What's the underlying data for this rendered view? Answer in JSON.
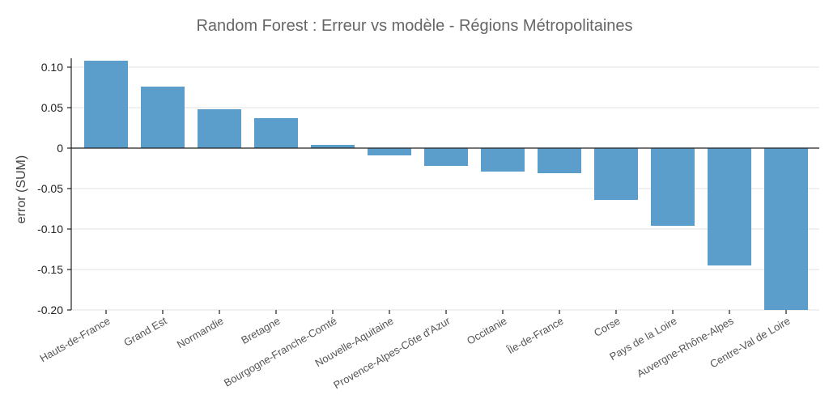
{
  "chart_data": {
    "type": "bar",
    "title": "Random Forest :  Erreur vs modèle - Régions Métropolitaines",
    "xlabel": "",
    "ylabel": "error (SUM)",
    "ylim": [
      -0.2,
      0.11
    ],
    "yticks": [
      0.1,
      0.05,
      0,
      -0.05,
      -0.1,
      -0.15,
      -0.2
    ],
    "ytick_labels": [
      "0.10",
      "0.05",
      "0",
      "-0.05",
      "-0.10",
      "-0.15",
      "-0.20"
    ],
    "grid": true,
    "bar_color": "#5b9dcb",
    "categories": [
      "Hauts-de-France",
      "Grand Est",
      "Normandie",
      "Bretagne",
      "Bourgogne-Franche-Comté",
      "Nouvelle-Aquitaine",
      "Provence-Alpes-Côte d'Azur",
      "Occitanie",
      "Île-de-France",
      "Corse",
      "Pays de la Loire",
      "Auvergne-Rhône-Alpes",
      "Centre-Val de Loire"
    ],
    "values": [
      0.108,
      0.076,
      0.048,
      0.037,
      0.004,
      -0.009,
      -0.022,
      -0.029,
      -0.031,
      -0.064,
      -0.096,
      -0.145,
      -0.2
    ]
  }
}
